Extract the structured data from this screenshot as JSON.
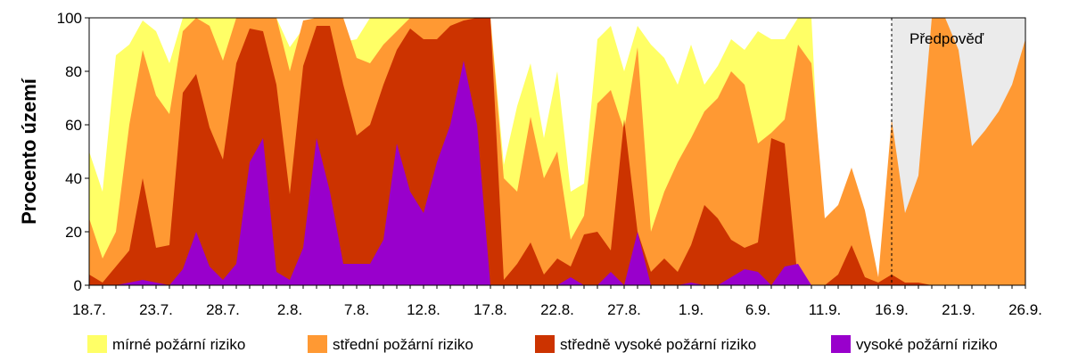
{
  "chart_data": {
    "type": "area",
    "stacked_cumulative": true,
    "xlabel": "",
    "ylabel": "Procento území",
    "ylim": [
      0,
      100
    ],
    "yticks": [
      0,
      20,
      40,
      60,
      80,
      100
    ],
    "xlim": [
      "18.7.",
      "26.9."
    ],
    "xticks": [
      "18.7.",
      "23.7.",
      "28.7.",
      "2.8.",
      "7.8.",
      "12.8.",
      "17.8.",
      "22.8.",
      "27.8.",
      "1.9.",
      "6.9.",
      "11.9.",
      "16.9.",
      "21.9.",
      "26.9."
    ],
    "forecast": {
      "label": "Předpověď",
      "start": "16.9.",
      "end": "26.9.",
      "shade_color": "#ebebeb"
    },
    "grid": false,
    "legend_position": "bottom",
    "x": [
      "18.7.",
      "19.7.",
      "20.7.",
      "21.7.",
      "22.7.",
      "23.7.",
      "24.7.",
      "25.7.",
      "26.7.",
      "27.7.",
      "28.7.",
      "29.7.",
      "30.7.",
      "31.7.",
      "1.8.",
      "2.8.",
      "3.8.",
      "4.8.",
      "5.8.",
      "6.8.",
      "7.8.",
      "8.8.",
      "9.8.",
      "10.8.",
      "11.8.",
      "12.8.",
      "13.8.",
      "14.8.",
      "15.8.",
      "16.8.",
      "17.8.",
      "18.8.",
      "19.8.",
      "20.8.",
      "21.8.",
      "22.8.",
      "23.8.",
      "24.8.",
      "25.8.",
      "26.8.",
      "27.8.",
      "28.8.",
      "29.8.",
      "30.8.",
      "31.8.",
      "1.9.",
      "2.9.",
      "3.9.",
      "4.9.",
      "5.9.",
      "6.9.",
      "7.9.",
      "8.9.",
      "9.9.",
      "10.9.",
      "11.9.",
      "12.9.",
      "13.9.",
      "14.9.",
      "15.9.",
      "16.9.",
      "17.9.",
      "18.9.",
      "19.9.",
      "20.9.",
      "21.9.",
      "22.9.",
      "23.9.",
      "24.9.",
      "25.9.",
      "26.9."
    ],
    "series": [
      {
        "name": "mírné požární riziko",
        "color": "#ffff66",
        "values": [
          50,
          35,
          86,
          90,
          99,
          95,
          83,
          100,
          100,
          100,
          100,
          100,
          100,
          100,
          100,
          89,
          96,
          100,
          100,
          91,
          92,
          100,
          100,
          100,
          100,
          100,
          100,
          100,
          100,
          100,
          100,
          45,
          67,
          83,
          55,
          80,
          35,
          38,
          92,
          97,
          80,
          97,
          90,
          85,
          75,
          90,
          75,
          82,
          92,
          88,
          95,
          92,
          92,
          100,
          100,
          0,
          0,
          0,
          0,
          0,
          0,
          0,
          0,
          0,
          0,
          0,
          0,
          0,
          0,
          0,
          0
        ]
      },
      {
        "name": "střední požární riziko",
        "color": "#ff9933",
        "values": [
          25,
          10,
          20,
          60,
          88,
          71,
          64,
          95,
          100,
          97,
          84,
          100,
          100,
          100,
          100,
          80,
          99,
          100,
          100,
          100,
          85,
          83,
          90,
          95,
          100,
          100,
          100,
          100,
          100,
          100,
          100,
          40,
          35,
          63,
          40,
          50,
          17,
          26,
          68,
          73,
          58,
          89,
          20,
          35,
          46,
          55,
          65,
          70,
          80,
          75,
          53,
          57,
          62,
          90,
          83,
          25,
          30,
          44,
          28,
          3,
          62,
          27,
          41,
          100,
          100,
          88,
          52,
          58,
          65,
          75,
          92
        ]
      },
      {
        "name": "středně vysoké požární riziko",
        "color": "#cc3300",
        "values": [
          4,
          1,
          7,
          13,
          40,
          14,
          15,
          72,
          79,
          59,
          47,
          83,
          96,
          95,
          75,
          34,
          82,
          97,
          97,
          75,
          56,
          60,
          75,
          88,
          96,
          92,
          92,
          97,
          99,
          100,
          100,
          2,
          8,
          16,
          4,
          10,
          7,
          19,
          20,
          13,
          62,
          20,
          5,
          10,
          5,
          15,
          30,
          25,
          17,
          14,
          16,
          55,
          53,
          1,
          0,
          0,
          4,
          15,
          3,
          1,
          4,
          1,
          1,
          0,
          0,
          0,
          0,
          0,
          0,
          0,
          0
        ]
      },
      {
        "name": "vysoké požární riziko",
        "color": "#9900cc",
        "values": [
          0,
          0,
          0,
          1,
          2,
          1,
          0,
          6,
          20,
          7,
          2,
          8,
          46,
          55,
          5,
          2,
          14,
          55,
          35,
          8,
          8,
          8,
          17,
          53,
          35,
          27,
          46,
          60,
          84,
          60,
          0,
          0,
          0,
          0,
          0,
          0,
          3,
          0,
          0,
          5,
          0,
          20,
          0,
          0,
          0,
          1,
          0,
          0,
          3,
          6,
          5,
          0,
          7,
          8,
          0,
          0,
          0,
          0,
          0,
          0,
          0,
          0,
          0,
          0,
          0,
          0,
          0,
          0,
          0,
          0,
          0
        ]
      }
    ]
  },
  "legend": [
    {
      "label": "mírné požární riziko",
      "color": "#ffff66"
    },
    {
      "label": "střední požární riziko",
      "color": "#ff9933"
    },
    {
      "label": "středně vysoké požární riziko",
      "color": "#cc3300"
    },
    {
      "label": "vysoké požární riziko",
      "color": "#9900cc"
    }
  ]
}
